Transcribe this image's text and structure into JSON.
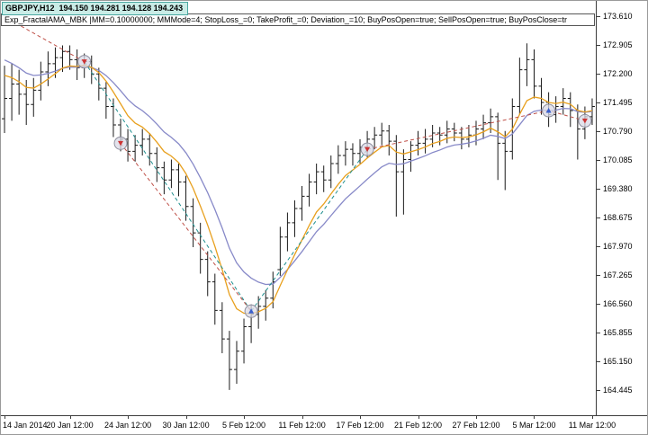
{
  "window": {
    "symbol_line": "GBPJPY,H12  194.150 194.281 194.128 194.243",
    "indicator_line": "Exp_FractalAMA_MBK |MM=0.10000000; MMMode=4; StopLoss_=0; TakeProfit_=0; Deviation_=10; BuyPosOpen=true; SellPosOpen=true; BuyPosClose=tr"
  },
  "colors": {
    "bar": "#1a1a1a",
    "ma_fast": "#e8a01e",
    "ma_slow": "#8789c8",
    "buy": "#1f8f8f",
    "sell": "#bf5048",
    "marker_fill": "#d9d9e6",
    "marker_stroke": "#8f8f9e",
    "marker_buy": "#3a5fcd",
    "marker_sell": "#cc3333",
    "axis_line": "#3c3c3c"
  },
  "chart_data": {
    "type": "bar",
    "title": "GBPJPY H12 candle chart with Exp_FractalAMA_MBK trade signals",
    "symbol": "GBPJPY",
    "timeframe": "H12",
    "legend": "none",
    "grid": false,
    "axis": {
      "price_max": 173.99,
      "price_min": 163.83,
      "y_ticks": [
        "173.610",
        "172.905",
        "172.200",
        "171.495",
        "170.790",
        "170.085",
        "169.380",
        "168.675",
        "167.970",
        "167.265",
        "166.560",
        "165.855",
        "165.150",
        "164.445"
      ],
      "x_ticks": [
        {
          "bar": 0,
          "label": "14 Jan 2014"
        },
        {
          "bar": 9,
          "label": "20 Jan 12:00"
        },
        {
          "bar": 17,
          "label": "24 Jan 12:00"
        },
        {
          "bar": 25,
          "label": "30 Jan 12:00"
        },
        {
          "bar": 33,
          "label": "5 Feb 12:00"
        },
        {
          "bar": 41,
          "label": "11 Feb 12:00"
        },
        {
          "bar": 49,
          "label": "17 Feb 12:00"
        },
        {
          "bar": 57,
          "label": "21 Feb 12:00"
        },
        {
          "bar": 65,
          "label": "27 Feb 12:00"
        },
        {
          "bar": 73,
          "label": "5 Mar 12:00"
        },
        {
          "bar": 81,
          "label": "11 Mar 12:00"
        }
      ]
    },
    "bars": [
      [
        171.1,
        172.4,
        170.75,
        171.6
      ],
      [
        171.6,
        172.45,
        171.05,
        171.95
      ],
      [
        171.95,
        172.3,
        171.2,
        171.7
      ],
      [
        171.7,
        172.05,
        170.95,
        171.45
      ],
      [
        171.45,
        172.1,
        171.15,
        171.8
      ],
      [
        171.8,
        172.5,
        171.55,
        172.25
      ],
      [
        172.25,
        172.75,
        171.9,
        172.45
      ],
      [
        172.45,
        172.85,
        172.1,
        172.6
      ],
      [
        172.6,
        172.9,
        172.25,
        172.75
      ],
      [
        172.75,
        172.9,
        172.3,
        172.55
      ],
      [
        172.55,
        172.8,
        172.05,
        172.35
      ],
      [
        172.35,
        172.7,
        172.1,
        172.5
      ],
      [
        172.5,
        172.65,
        171.95,
        172.2
      ],
      [
        172.2,
        172.35,
        171.55,
        171.85
      ],
      [
        171.85,
        172.0,
        171.1,
        171.4
      ],
      [
        171.4,
        171.6,
        170.65,
        170.95
      ],
      [
        170.95,
        171.1,
        170.3,
        170.6
      ],
      [
        170.6,
        170.85,
        170.05,
        170.3
      ],
      [
        170.3,
        170.7,
        170.05,
        170.45
      ],
      [
        170.45,
        170.85,
        170.2,
        170.6
      ],
      [
        170.6,
        170.75,
        169.95,
        170.25
      ],
      [
        170.25,
        170.4,
        169.55,
        169.9
      ],
      [
        169.9,
        170.05,
        169.25,
        169.6
      ],
      [
        169.6,
        170.1,
        169.4,
        169.85
      ],
      [
        169.85,
        170.0,
        169.2,
        169.55
      ],
      [
        169.55,
        169.7,
        168.6,
        168.95
      ],
      [
        168.95,
        169.15,
        167.95,
        168.3
      ],
      [
        168.3,
        168.55,
        167.3,
        167.65
      ],
      [
        167.65,
        167.85,
        166.75,
        167.1
      ],
      [
        167.1,
        167.3,
        166.05,
        166.4
      ],
      [
        166.4,
        166.6,
        165.35,
        165.7
      ],
      [
        165.7,
        165.9,
        164.45,
        164.95
      ],
      [
        164.95,
        165.65,
        164.6,
        165.4
      ],
      [
        165.4,
        166.2,
        165.1,
        166.0
      ],
      [
        166.0,
        166.55,
        165.6,
        166.3
      ],
      [
        166.3,
        166.75,
        165.95,
        166.5
      ],
      [
        166.5,
        166.9,
        166.15,
        166.7
      ],
      [
        166.7,
        167.35,
        166.45,
        167.1
      ],
      [
        167.4,
        168.45,
        167.25,
        168.2
      ],
      [
        168.2,
        168.8,
        167.85,
        168.55
      ],
      [
        168.55,
        169.1,
        168.2,
        168.9
      ],
      [
        168.9,
        169.45,
        168.6,
        169.2
      ],
      [
        169.2,
        169.75,
        168.95,
        169.55
      ],
      [
        169.55,
        170.0,
        169.25,
        169.8
      ],
      [
        169.8,
        169.95,
        169.3,
        169.6
      ],
      [
        169.6,
        170.2,
        169.4,
        170.0
      ],
      [
        170.0,
        170.45,
        169.75,
        170.2
      ],
      [
        170.2,
        170.55,
        169.95,
        170.35
      ],
      [
        170.35,
        170.5,
        169.95,
        170.25
      ],
      [
        170.25,
        170.6,
        170.0,
        170.4
      ],
      [
        170.4,
        170.8,
        170.15,
        170.6
      ],
      [
        170.6,
        170.9,
        170.35,
        170.7
      ],
      [
        170.7,
        171.0,
        170.45,
        170.8
      ],
      [
        170.8,
        170.95,
        170.2,
        170.55
      ],
      [
        170.55,
        170.7,
        168.7,
        169.8
      ],
      [
        169.8,
        170.35,
        168.75,
        170.1
      ],
      [
        170.1,
        170.55,
        169.8,
        170.45
      ],
      [
        170.45,
        170.8,
        170.2,
        170.5
      ],
      [
        170.5,
        170.85,
        170.25,
        170.6
      ],
      [
        170.6,
        170.95,
        170.4,
        170.75
      ],
      [
        170.75,
        170.9,
        170.45,
        170.7
      ],
      [
        170.7,
        171.05,
        170.5,
        170.85
      ],
      [
        170.85,
        171.0,
        170.55,
        170.75
      ],
      [
        170.75,
        170.9,
        170.35,
        170.6
      ],
      [
        170.6,
        170.95,
        170.4,
        170.7
      ],
      [
        170.7,
        171.05,
        170.45,
        170.85
      ],
      [
        170.85,
        171.2,
        170.6,
        171.0
      ],
      [
        171.0,
        171.35,
        170.75,
        171.15
      ],
      [
        171.15,
        171.25,
        169.6,
        170.5
      ],
      [
        170.5,
        170.8,
        169.35,
        170.3
      ],
      [
        170.3,
        171.6,
        170.1,
        171.4
      ],
      [
        171.4,
        172.6,
        171.2,
        172.3
      ],
      [
        172.3,
        172.95,
        171.9,
        172.55
      ],
      [
        172.55,
        172.8,
        171.6,
        171.9
      ],
      [
        171.9,
        172.1,
        171.2,
        171.5
      ],
      [
        171.5,
        171.75,
        170.9,
        171.2
      ],
      [
        171.2,
        171.65,
        171.0,
        171.4
      ],
      [
        171.4,
        171.85,
        171.2,
        171.6
      ],
      [
        171.6,
        171.75,
        170.9,
        171.3
      ],
      [
        171.3,
        171.45,
        170.1,
        170.85
      ],
      [
        170.85,
        171.4,
        170.6,
        171.15
      ],
      [
        171.15,
        171.6,
        170.95,
        171.4
      ]
    ],
    "ma": {
      "fast_period": 7,
      "fast_seed": 172.35,
      "slow_period": 13,
      "slow_seed": 172.7
    },
    "trade_lines": [
      {
        "type": "sell",
        "points": [
          [
            0,
            173.6
          ],
          [
            11,
            172.5
          ]
        ]
      },
      {
        "type": "buy",
        "points": [
          [
            11,
            172.5
          ],
          [
            34,
            166.38
          ]
        ]
      },
      {
        "type": "sell",
        "points": [
          [
            16,
            170.5
          ],
          [
            34,
            166.38
          ]
        ]
      },
      {
        "type": "buy",
        "points": [
          [
            34,
            166.38
          ],
          [
            50,
            170.35
          ]
        ]
      },
      {
        "type": "sell",
        "points": [
          [
            50,
            170.35
          ],
          [
            75,
            171.3
          ],
          [
            80,
            171.05
          ]
        ]
      }
    ],
    "markers": [
      {
        "bar": 11,
        "price": 172.5,
        "type": "sell"
      },
      {
        "bar": 16,
        "price": 170.5,
        "type": "sell"
      },
      {
        "bar": 34,
        "price": 166.38,
        "type": "buy"
      },
      {
        "bar": 50,
        "price": 170.35,
        "type": "sell"
      },
      {
        "bar": 75,
        "price": 171.3,
        "type": "buy"
      },
      {
        "bar": 80,
        "price": 171.05,
        "type": "sell"
      }
    ]
  }
}
